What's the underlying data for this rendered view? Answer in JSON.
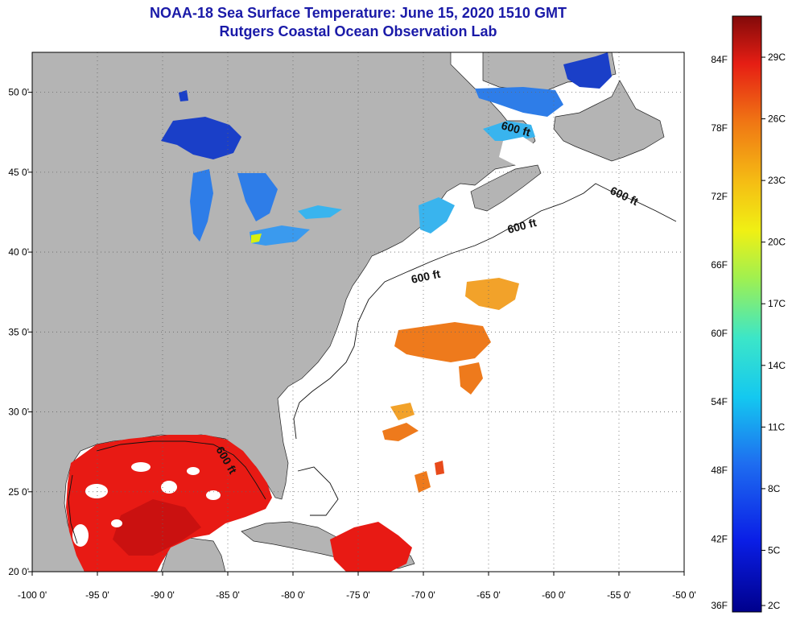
{
  "title": "NOAA-18 Sea Surface Temperature:  June 15, 2020 1510 GMT",
  "subtitle": "Rutgers Coastal Ocean Observation Lab",
  "map": {
    "lon_labels": [
      "-100 0'",
      "-95 0'",
      "-90 0'",
      "-85 0'",
      "-80 0'",
      "-75 0'",
      "-70 0'",
      "-65 0'",
      "-60 0'",
      "-55 0'",
      "-50 0'"
    ],
    "lon_values": [
      -100,
      -95,
      -90,
      -85,
      -80,
      -75,
      -70,
      -65,
      -60,
      -55,
      -50
    ],
    "lat_labels": [
      "20 0'",
      "25 0'",
      "30 0'",
      "35 0'",
      "40 0'",
      "45 0'",
      "50 0'"
    ],
    "lat_values": [
      20,
      25,
      30,
      35,
      40,
      45,
      50
    ],
    "lon_range": [
      -100,
      -50
    ],
    "lat_range": [
      20,
      52.5
    ],
    "isobath_label": "600 ft",
    "colors": {
      "land": "#b4b4b4",
      "ocean": "#ffffff",
      "gulf_warm": "#e81a14",
      "gulf_hot": "#c20f0f",
      "atlantic_warm": "#ee7a1c",
      "atlantic_yellow": "#f2a22a",
      "lake_cold": "#1a3fc8",
      "lake_cool": "#2e7de8",
      "coastal_cool": "#39b4ee"
    }
  },
  "colorbar": {
    "f_labels": [
      "84F",
      "78F",
      "72F",
      "66F",
      "60F",
      "54F",
      "48F",
      "42F",
      "36F"
    ],
    "c_labels": [
      "29C",
      "26C",
      "23C",
      "20C",
      "17C",
      "14C",
      "11C",
      "8C",
      "5C",
      "2C"
    ],
    "f_values": [
      84,
      78,
      72,
      66,
      60,
      54,
      48,
      42,
      36
    ],
    "c_values": [
      29,
      26,
      23,
      20,
      17,
      14,
      11,
      8,
      5,
      2
    ],
    "range_c": [
      2,
      31
    ]
  }
}
